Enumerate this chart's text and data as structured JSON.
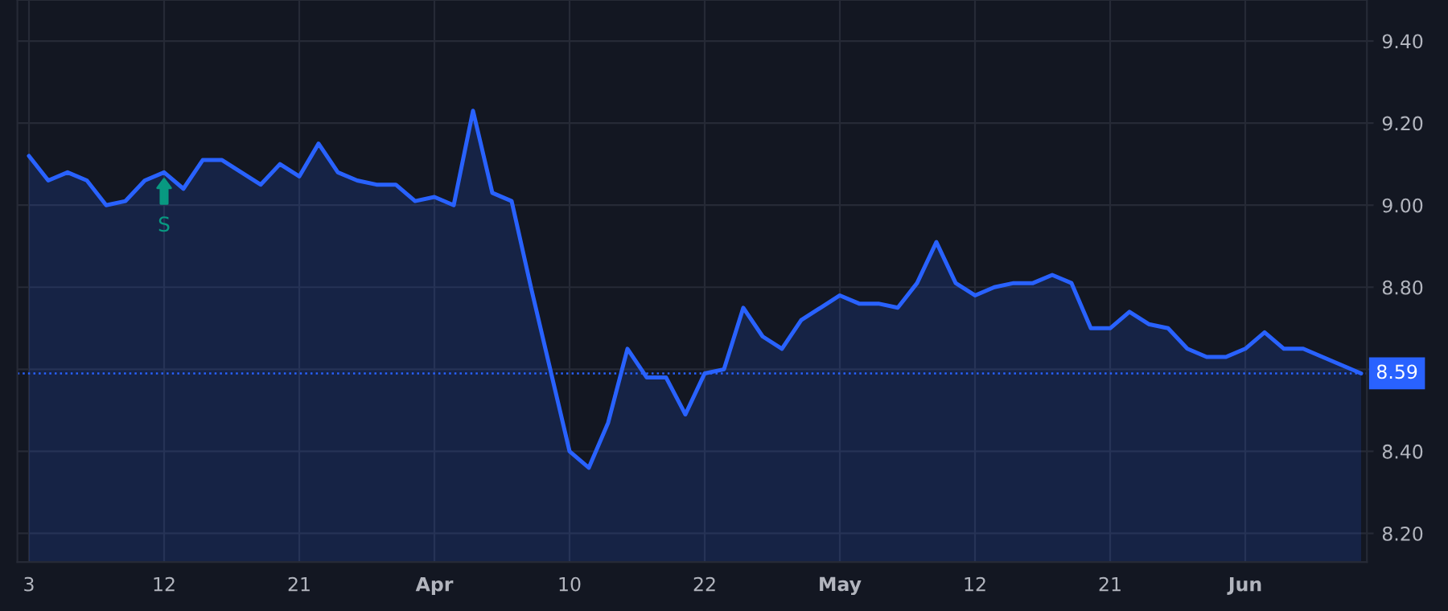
{
  "chart_data": {
    "type": "area",
    "categories": [
      "3",
      null,
      null,
      null,
      null,
      null,
      null,
      "12",
      null,
      null,
      null,
      null,
      null,
      null,
      "21",
      null,
      null,
      null,
      null,
      null,
      null,
      "Apr",
      null,
      null,
      null,
      null,
      null,
      null,
      "10",
      null,
      null,
      null,
      null,
      null,
      null,
      "22",
      null,
      null,
      null,
      null,
      null,
      null,
      "May",
      null,
      null,
      null,
      null,
      null,
      null,
      "12",
      null,
      null,
      null,
      null,
      null,
      null,
      "21",
      null,
      null,
      null,
      null,
      null,
      null,
      "Jun",
      null,
      null,
      null,
      null,
      null,
      null
    ],
    "series": [
      {
        "color": "#2962ff",
        "values": [
          9.12,
          9.06,
          9.08,
          9.06,
          9.0,
          9.01,
          9.06,
          9.08,
          9.04,
          9.11,
          9.11,
          9.08,
          9.05,
          9.1,
          9.07,
          9.15,
          9.08,
          9.06,
          9.05,
          9.05,
          9.01,
          9.02,
          9.0,
          9.23,
          9.03,
          9.01,
          8.8,
          8.6,
          8.4,
          8.36,
          8.47,
          8.65,
          8.58,
          8.58,
          8.49,
          8.59,
          8.6,
          8.75,
          8.68,
          8.65,
          8.72,
          8.75,
          8.78,
          8.76,
          8.76,
          8.75,
          8.81,
          8.91,
          8.81,
          8.78,
          8.8,
          8.81,
          8.81,
          8.83,
          8.81,
          8.7,
          8.7,
          8.74,
          8.71,
          8.7,
          8.65,
          8.63,
          8.63,
          8.65,
          8.69,
          8.65,
          8.65,
          8.63,
          8.61,
          8.59
        ]
      }
    ],
    "ylim": [
      8.13,
      9.5
    ],
    "yticks": [
      {
        "value": 8.2,
        "label": "8.20"
      },
      {
        "value": 8.4,
        "label": "8.40"
      },
      {
        "value": 8.6,
        "label": null
      },
      {
        "value": 8.8,
        "label": "8.80"
      },
      {
        "value": 9.0,
        "label": "9.00"
      },
      {
        "value": 9.2,
        "label": "9.20"
      },
      {
        "value": 9.4,
        "label": "9.40"
      }
    ],
    "grid": true,
    "ref_lines": [
      {
        "axis": "y",
        "value": 8.59,
        "label": "8.59",
        "color": "#2962ff",
        "line_style": "dotted"
      }
    ],
    "annotations": [
      {
        "text": "S",
        "x": "12",
        "y": 9.08
      }
    ]
  }
}
